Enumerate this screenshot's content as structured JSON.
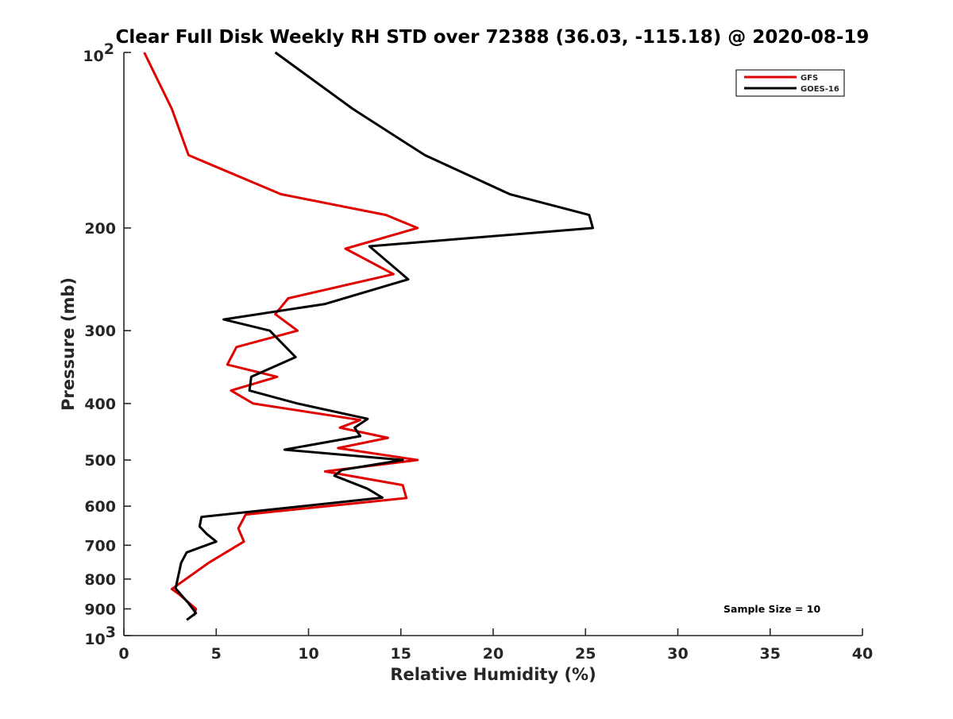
{
  "chart_data": {
    "type": "line",
    "title": "Clear Full Disk Weekly RH STD over 72388 (36.03, -115.18) @ 2020-08-19",
    "xlabel": "Relative Humidity (%)",
    "ylabel": "Pressure (mb)",
    "xlim": [
      0,
      40
    ],
    "ylim": [
      100,
      1000
    ],
    "y_scale": "log",
    "y_reversed": true,
    "x_ticks": [
      0,
      5,
      10,
      15,
      20,
      25,
      30,
      35,
      40
    ],
    "x_tick_labels": [
      "0",
      "5",
      "10",
      "15",
      "20",
      "25",
      "30",
      "35",
      "40"
    ],
    "y_ticks": [
      200,
      300,
      400,
      500,
      600,
      700,
      800,
      900
    ],
    "y_tick_labels": [
      "200",
      "300",
      "400",
      "500",
      "600",
      "700",
      "800",
      "900"
    ],
    "y_end_labels": {
      "top": {
        "base": "10",
        "exp": "2"
      },
      "bottom": {
        "base": "10",
        "exp": "3"
      }
    },
    "grid": false,
    "legend_position": "top-right",
    "annotation": "Sample Size = 10",
    "series": [
      {
        "name": "GFS",
        "color": "#e00000",
        "points": [
          [
            1.1,
            100
          ],
          [
            2.6,
            125
          ],
          [
            3.5,
            150
          ],
          [
            8.5,
            175
          ],
          [
            14.2,
            190
          ],
          [
            15.9,
            200
          ],
          [
            12.0,
            217
          ],
          [
            14.6,
            240
          ],
          [
            8.9,
            264
          ],
          [
            8.2,
            281
          ],
          [
            9.4,
            300
          ],
          [
            6.1,
            320
          ],
          [
            5.6,
            343
          ],
          [
            8.3,
            360
          ],
          [
            5.8,
            380
          ],
          [
            7.0,
            400
          ],
          [
            12.8,
            427
          ],
          [
            11.7,
            440
          ],
          [
            14.3,
            458
          ],
          [
            11.6,
            477
          ],
          [
            15.9,
            500
          ],
          [
            10.9,
            523
          ],
          [
            15.1,
            552
          ],
          [
            15.3,
            581
          ],
          [
            6.6,
            620
          ],
          [
            6.2,
            655
          ],
          [
            6.5,
            690
          ],
          [
            4.6,
            750
          ],
          [
            2.6,
            832
          ],
          [
            3.0,
            850
          ],
          [
            3.9,
            900
          ],
          [
            3.8,
            925
          ]
        ]
      },
      {
        "name": "GOES-16",
        "color": "#000000",
        "points": [
          [
            8.2,
            100
          ],
          [
            12.4,
            125
          ],
          [
            16.3,
            150
          ],
          [
            20.9,
            175
          ],
          [
            25.2,
            190
          ],
          [
            25.4,
            200
          ],
          [
            13.3,
            215
          ],
          [
            15.4,
            245
          ],
          [
            10.9,
            270
          ],
          [
            5.4,
            287
          ],
          [
            7.9,
            300
          ],
          [
            9.3,
            333
          ],
          [
            6.9,
            360
          ],
          [
            6.8,
            380
          ],
          [
            9.4,
            400
          ],
          [
            13.2,
            425
          ],
          [
            12.5,
            440
          ],
          [
            12.8,
            455
          ],
          [
            8.7,
            480
          ],
          [
            15.1,
            500
          ],
          [
            11.8,
            520
          ],
          [
            11.4,
            532
          ],
          [
            13.2,
            560
          ],
          [
            14.0,
            580
          ],
          [
            4.2,
            626
          ],
          [
            4.1,
            650
          ],
          [
            4.5,
            670
          ],
          [
            5.0,
            690
          ],
          [
            3.4,
            720
          ],
          [
            3.1,
            750
          ],
          [
            2.8,
            830
          ],
          [
            3.5,
            880
          ],
          [
            3.9,
            915
          ],
          [
            3.4,
            940
          ]
        ]
      }
    ]
  }
}
